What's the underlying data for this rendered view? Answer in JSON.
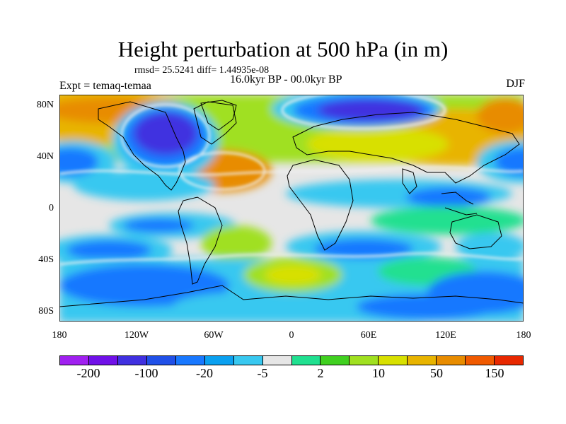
{
  "title": "Height perturbation at 500 hPa (in m)",
  "stats": "rmsd= 25.5241  diff= 1.44935e-08",
  "expt": "Expt = temaq-temaa",
  "period": "16.0kyr BP - 00.0kyr BP",
  "season": "DJF",
  "lat_ticks": [
    "80N",
    "40N",
    "0",
    "40S",
    "80S"
  ],
  "lon_ticks": [
    "180",
    "120W",
    "60W",
    "0",
    "60E",
    "120E",
    "180"
  ],
  "colorbar": {
    "colors": [
      "#a020f0",
      "#7010e8",
      "#4030e0",
      "#2050e8",
      "#1878ff",
      "#0aa0f0",
      "#38c8f0",
      "#e6e6e6",
      "#20e090",
      "#40d020",
      "#a0e020",
      "#d8e000",
      "#e8b400",
      "#e88c00",
      "#f05a00",
      "#e82800"
    ],
    "labels": [
      "-200",
      "-100",
      "-20",
      "-5",
      "2",
      "10",
      "50",
      "150"
    ]
  },
  "map_colors": {
    "neutral": "#e6e6e6",
    "pos_weak": "#a0e020",
    "pos_mid": "#d8e000",
    "pos_strong": "#e88c00",
    "neg_weak": "#38c8f0",
    "neg_mid": "#1878ff",
    "neg_strong": "#4030e0",
    "neg_extreme": "#7010e8",
    "green": "#40d020"
  }
}
